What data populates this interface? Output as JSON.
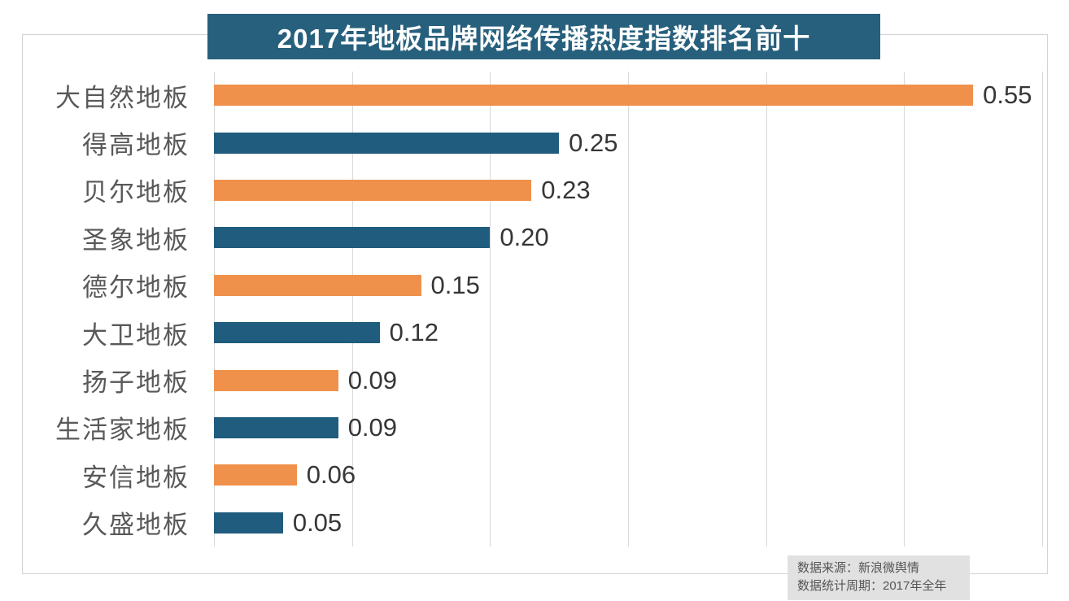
{
  "title": "2017年地板品牌网络传播热度指数排名前十",
  "colors": {
    "banner_bg": "#27607d",
    "banner_text": "#ffffff",
    "bar_orange": "#f0914b",
    "bar_blue": "#1f5c7e",
    "grid": "#d9d9d9",
    "frame_border": "#d3d3d3",
    "category_label": "#595959",
    "value_label": "#363636",
    "source_bg": "#e1e1e1",
    "source_text": "#555555"
  },
  "chart_data": {
    "type": "bar",
    "orientation": "horizontal",
    "title": "2017年地板品牌网络传播热度指数排名前十",
    "categories": [
      "大自然地板",
      "得高地板",
      "贝尔地板",
      "圣象地板",
      "德尔地板",
      "大卫地板",
      "扬子地板",
      "生活家地板",
      "安信地板",
      "久盛地板"
    ],
    "values": [
      0.55,
      0.25,
      0.23,
      0.2,
      0.15,
      0.12,
      0.09,
      0.09,
      0.06,
      0.05
    ],
    "value_labels": [
      "0.55",
      "0.25",
      "0.23",
      "0.20",
      "0.15",
      "0.12",
      "0.09",
      "0.09",
      "0.06",
      "0.05"
    ],
    "bar_colors": [
      "#f0914b",
      "#1f5c7e",
      "#f0914b",
      "#1f5c7e",
      "#f0914b",
      "#1f5c7e",
      "#f0914b",
      "#1f5c7e",
      "#f0914b",
      "#1f5c7e"
    ],
    "xlim": [
      0,
      0.6
    ],
    "grid_step": 0.1,
    "gridlines": "vertical, every 0.1, no tick labels",
    "legend": "none",
    "data_labels": "at end of each bar"
  },
  "source": {
    "line1": "数据来源：新浪微舆情",
    "line2": "数据统计周期：2017年全年"
  }
}
